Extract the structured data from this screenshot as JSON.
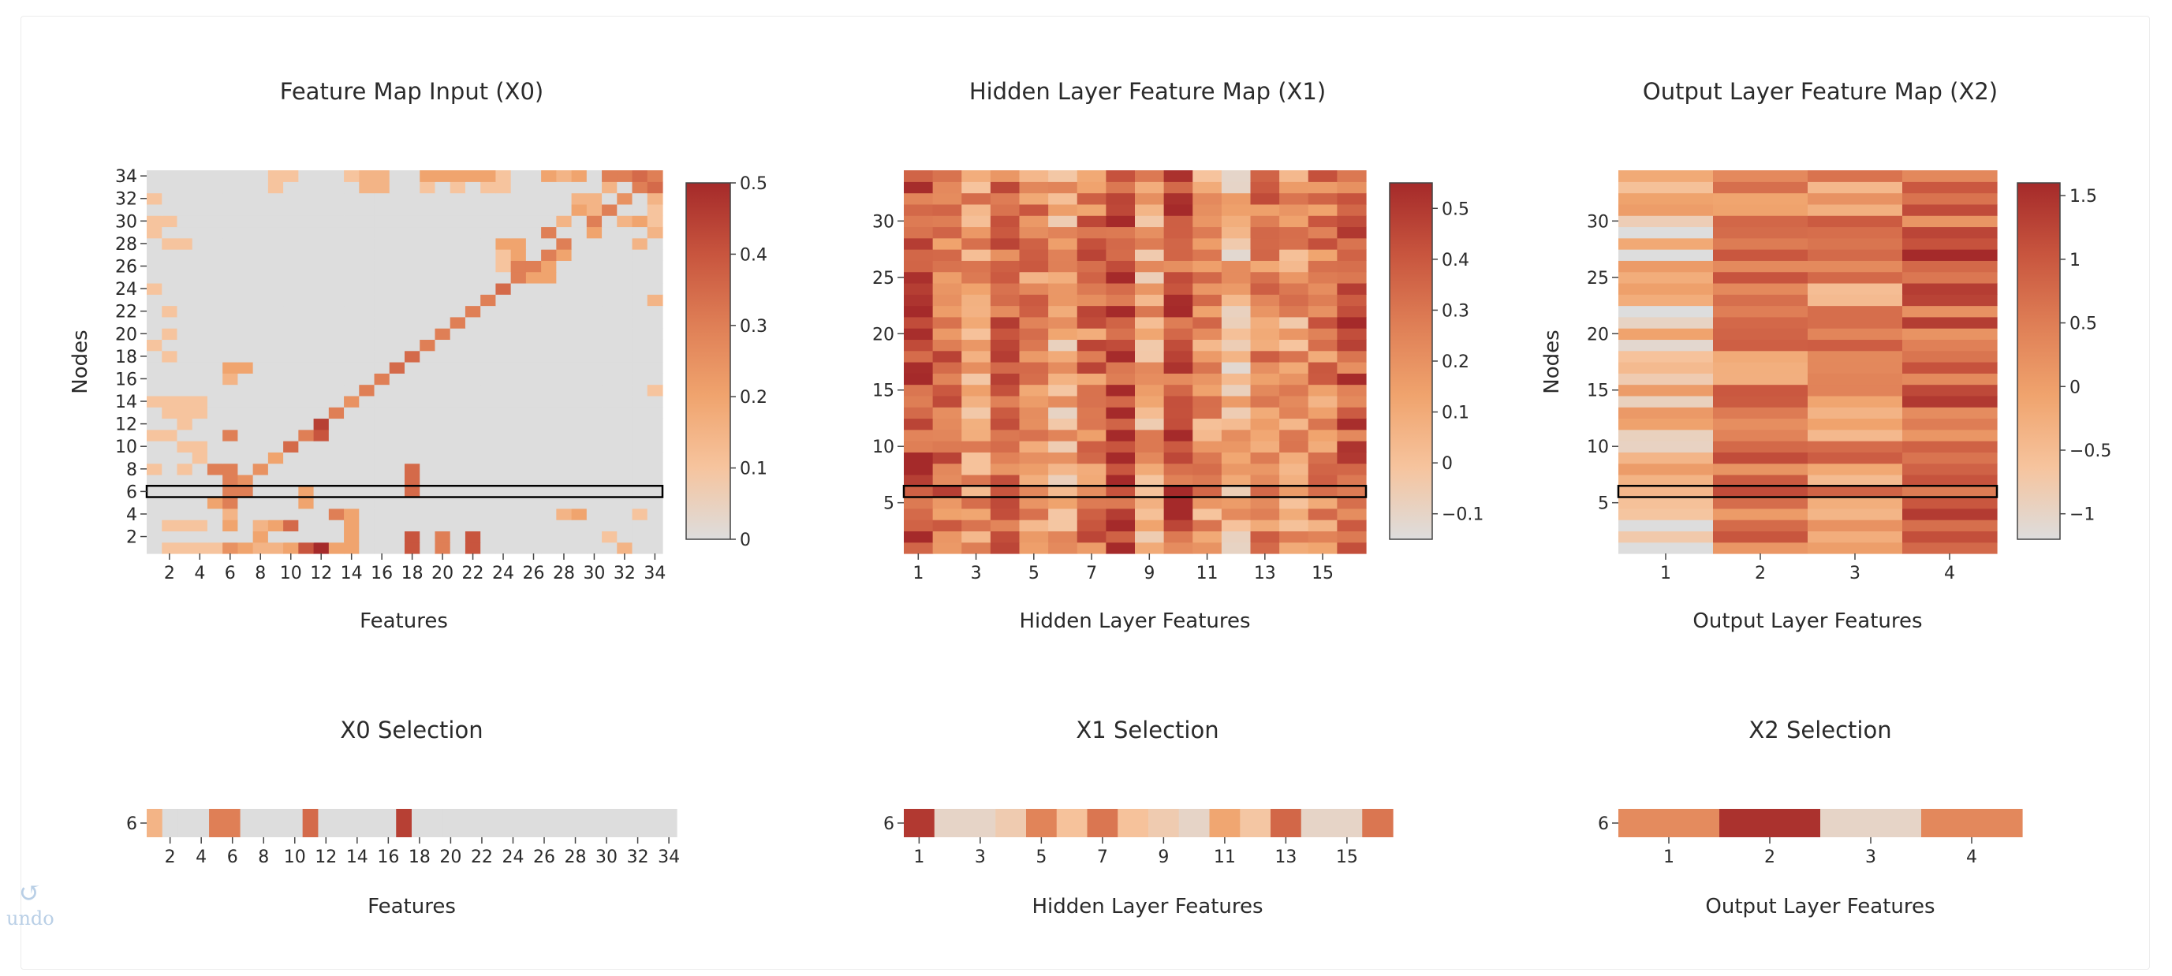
{
  "colors": {
    "scale": [
      "#dddddd",
      "#f6c49e",
      "#f0a46e",
      "#df7f56",
      "#c8553e",
      "#a52a2a"
    ],
    "selection_outline": "#000000",
    "background_cell": "#dddddd"
  },
  "undo": {
    "label": "undo",
    "icon": "undo-icon"
  },
  "chart_data": [
    {
      "id": "x0",
      "type": "heatmap",
      "title": "Feature Map Input (X0)",
      "xlabel": "Features",
      "ylabel": "Nodes",
      "xrange": [
        1,
        34
      ],
      "yrange": [
        1,
        34
      ],
      "xticks": [
        2,
        4,
        6,
        8,
        10,
        12,
        14,
        16,
        18,
        20,
        22,
        24,
        26,
        28,
        30,
        32,
        34
      ],
      "yticks": [
        2,
        4,
        6,
        8,
        10,
        12,
        14,
        16,
        18,
        20,
        22,
        24,
        26,
        28,
        30,
        32,
        34
      ],
      "colorbar": {
        "min": 0,
        "max": 0.5,
        "ticks": [
          "0",
          "0.1",
          "0.2",
          "0.3",
          "0.4",
          "0.5"
        ]
      },
      "selected_row": 6,
      "cells": [
        [
          1,
          6,
          0.25
        ],
        [
          1,
          7,
          0.2
        ],
        [
          1,
          8,
          0.15
        ],
        [
          1,
          9,
          0.15
        ],
        [
          1,
          10,
          0.2
        ],
        [
          1,
          11,
          0.4
        ],
        [
          1,
          12,
          0.5
        ],
        [
          1,
          13,
          0.2
        ],
        [
          1,
          14,
          0.2
        ],
        [
          1,
          18,
          0.4
        ],
        [
          1,
          20,
          0.3
        ],
        [
          1,
          22,
          0.4
        ],
        [
          1,
          32,
          0.15
        ],
        [
          1,
          2,
          0.1
        ],
        [
          1,
          3,
          0.1
        ],
        [
          1,
          4,
          0.1
        ],
        [
          1,
          5,
          0.1
        ],
        [
          2,
          8,
          0.2
        ],
        [
          2,
          14,
          0.2
        ],
        [
          2,
          18,
          0.4
        ],
        [
          2,
          20,
          0.3
        ],
        [
          2,
          22,
          0.4
        ],
        [
          2,
          31,
          0.1
        ],
        [
          3,
          10,
          0.35
        ],
        [
          3,
          9,
          0.2
        ],
        [
          3,
          14,
          0.2
        ],
        [
          3,
          8,
          0.15
        ],
        [
          3,
          6,
          0.2
        ],
        [
          3,
          2,
          0.1
        ],
        [
          3,
          3,
          0.1
        ],
        [
          3,
          4,
          0.1
        ],
        [
          4,
          13,
          0.3
        ],
        [
          4,
          6,
          0.15
        ],
        [
          4,
          14,
          0.2
        ],
        [
          4,
          28,
          0.15
        ],
        [
          4,
          29,
          0.2
        ],
        [
          4,
          33,
          0.1
        ],
        [
          5,
          6,
          0.3
        ],
        [
          5,
          11,
          0.2
        ],
        [
          5,
          5,
          0.2
        ],
        [
          6,
          6,
          0.3
        ],
        [
          6,
          7,
          0.3
        ],
        [
          6,
          11,
          0.2
        ],
        [
          6,
          18,
          0.35
        ],
        [
          7,
          6,
          0.3
        ],
        [
          7,
          7,
          0.25
        ],
        [
          7,
          18,
          0.35
        ],
        [
          8,
          6,
          0.3
        ],
        [
          8,
          5,
          0.3
        ],
        [
          8,
          8,
          0.25
        ],
        [
          8,
          18,
          0.35
        ],
        [
          8,
          3,
          0.1
        ],
        [
          8,
          1,
          0.1
        ],
        [
          9,
          9,
          0.2
        ],
        [
          9,
          4,
          0.1
        ],
        [
          10,
          10,
          0.35
        ],
        [
          10,
          3,
          0.1
        ],
        [
          10,
          4,
          0.1
        ],
        [
          11,
          6,
          0.3
        ],
        [
          11,
          11,
          0.3
        ],
        [
          11,
          12,
          0.4
        ],
        [
          11,
          2,
          0.1
        ],
        [
          11,
          1,
          0.1
        ],
        [
          12,
          12,
          0.45
        ],
        [
          12,
          3,
          0.1
        ],
        [
          13,
          13,
          0.3
        ],
        [
          13,
          4,
          0.1
        ],
        [
          13,
          3,
          0.1
        ],
        [
          13,
          2,
          0.1
        ],
        [
          14,
          14,
          0.25
        ],
        [
          14,
          4,
          0.1
        ],
        [
          14,
          3,
          0.1
        ],
        [
          14,
          2,
          0.1
        ],
        [
          14,
          1,
          0.1
        ],
        [
          15,
          15,
          0.3
        ],
        [
          15,
          34,
          0.1
        ],
        [
          16,
          16,
          0.3
        ],
        [
          16,
          6,
          0.15
        ],
        [
          17,
          17,
          0.35
        ],
        [
          17,
          6,
          0.2
        ],
        [
          17,
          7,
          0.2
        ],
        [
          18,
          18,
          0.35
        ],
        [
          18,
          2,
          0.1
        ],
        [
          19,
          19,
          0.3
        ],
        [
          19,
          1,
          0.1
        ],
        [
          20,
          20,
          0.3
        ],
        [
          20,
          2,
          0.1
        ],
        [
          21,
          21,
          0.3
        ],
        [
          22,
          22,
          0.3
        ],
        [
          22,
          2,
          0.1
        ],
        [
          23,
          23,
          0.3
        ],
        [
          23,
          34,
          0.15
        ],
        [
          24,
          24,
          0.35
        ],
        [
          24,
          1,
          0.1
        ],
        [
          25,
          25,
          0.3
        ],
        [
          25,
          27,
          0.2
        ],
        [
          25,
          26,
          0.2
        ],
        [
          26,
          26,
          0.3
        ],
        [
          26,
          25,
          0.3
        ],
        [
          26,
          27,
          0.2
        ],
        [
          26,
          24,
          0.1
        ],
        [
          27,
          27,
          0.3
        ],
        [
          27,
          28,
          0.2
        ],
        [
          27,
          25,
          0.2
        ],
        [
          27,
          24,
          0.1
        ],
        [
          28,
          28,
          0.3
        ],
        [
          28,
          25,
          0.2
        ],
        [
          28,
          24,
          0.2
        ],
        [
          28,
          33,
          0.15
        ],
        [
          28,
          2,
          0.1
        ],
        [
          28,
          3,
          0.1
        ],
        [
          29,
          27,
          0.3
        ],
        [
          29,
          30,
          0.2
        ],
        [
          29,
          34,
          0.15
        ],
        [
          29,
          1,
          0.1
        ],
        [
          30,
          30,
          0.3
        ],
        [
          30,
          28,
          0.15
        ],
        [
          30,
          32,
          0.15
        ],
        [
          30,
          33,
          0.2
        ],
        [
          30,
          34,
          0.1
        ],
        [
          30,
          1,
          0.1
        ],
        [
          30,
          2,
          0.1
        ],
        [
          31,
          31,
          0.3
        ],
        [
          31,
          29,
          0.2
        ],
        [
          31,
          30,
          0.15
        ],
        [
          31,
          34,
          0.1
        ],
        [
          32,
          32,
          0.25
        ],
        [
          32,
          30,
          0.15
        ],
        [
          32,
          29,
          0.15
        ],
        [
          32,
          34,
          0.15
        ],
        [
          32,
          1,
          0.1
        ],
        [
          33,
          33,
          0.3
        ],
        [
          33,
          34,
          0.35
        ],
        [
          33,
          31,
          0.15
        ],
        [
          33,
          24,
          0.1
        ],
        [
          33,
          16,
          0.15
        ],
        [
          33,
          15,
          0.15
        ],
        [
          33,
          21,
          0.1
        ],
        [
          33,
          23,
          0.1
        ],
        [
          33,
          19,
          0.1
        ],
        [
          33,
          9,
          0.1
        ],
        [
          34,
          34,
          0.3
        ],
        [
          34,
          33,
          0.35
        ],
        [
          34,
          32,
          0.3
        ],
        [
          34,
          31,
          0.3
        ],
        [
          34,
          29,
          0.2
        ],
        [
          34,
          28,
          0.15
        ],
        [
          34,
          27,
          0.2
        ],
        [
          34,
          24,
          0.1
        ],
        [
          34,
          23,
          0.2
        ],
        [
          34,
          22,
          0.2
        ],
        [
          34,
          21,
          0.2
        ],
        [
          34,
          20,
          0.2
        ],
        [
          34,
          19,
          0.2
        ],
        [
          34,
          16,
          0.15
        ],
        [
          34,
          15,
          0.15
        ],
        [
          34,
          14,
          0.1
        ],
        [
          34,
          10,
          0.1
        ],
        [
          34,
          9,
          0.1
        ]
      ]
    },
    {
      "id": "x1",
      "type": "heatmap",
      "title": "Hidden Layer Feature Map (X1)",
      "xlabel": "Hidden Layer Features",
      "ylabel": "",
      "xrange": [
        1,
        16
      ],
      "yrange": [
        1,
        34
      ],
      "xticks": [
        1,
        3,
        5,
        7,
        9,
        11,
        13,
        15
      ],
      "yticks": [
        5,
        10,
        15,
        20,
        25,
        30
      ],
      "colorbar": {
        "min": -0.15,
        "max": 0.55,
        "ticks": [
          "−0.1",
          "0",
          "0.1",
          "0.2",
          "0.3",
          "0.4",
          "0.5"
        ],
        "tick_values": [
          -0.1,
          0,
          0.1,
          0.2,
          0.3,
          0.4,
          0.5
        ]
      },
      "selected_row": 6,
      "column_means": [
        0.42,
        0.32,
        0.15,
        0.36,
        0.22,
        0.1,
        0.28,
        0.45,
        0.12,
        0.4,
        0.18,
        0.06,
        0.26,
        0.14,
        0.24,
        0.38
      ]
    },
    {
      "id": "x2",
      "type": "heatmap",
      "title": "Output Layer Feature Map (X2)",
      "xlabel": "Output Layer Features",
      "ylabel": "Nodes",
      "xrange": [
        1,
        4
      ],
      "yrange": [
        1,
        34
      ],
      "xticks": [
        1,
        2,
        3,
        4
      ],
      "yticks": [
        5,
        10,
        15,
        20,
        25,
        30
      ],
      "colorbar": {
        "min": -1.2,
        "max": 1.6,
        "ticks": [
          "−1",
          "−0.5",
          "0",
          "0.5",
          "1",
          "1.5"
        ],
        "tick_values": [
          -1,
          -0.5,
          0,
          0.5,
          1,
          1.5
        ]
      },
      "selected_row": 6,
      "column_means": [
        -0.6,
        0.4,
        0.25,
        0.9
      ]
    },
    {
      "id": "x0sel",
      "type": "heatmap",
      "title": "X0 Selection",
      "xlabel": "Features",
      "row_label": "6",
      "xticks": [
        2,
        4,
        6,
        8,
        10,
        12,
        14,
        16,
        18,
        20,
        22,
        24,
        26,
        28,
        30,
        32,
        34
      ],
      "values": [
        0.15,
        0,
        0,
        0,
        0.3,
        0.3,
        0,
        0,
        0,
        0,
        0.35,
        0,
        0,
        0,
        0,
        0,
        0.45,
        0,
        0,
        0,
        0,
        0,
        0,
        0,
        0,
        0,
        0,
        0,
        0,
        0,
        0,
        0,
        0,
        0
      ],
      "vmin": 0,
      "vmax": 0.5
    },
    {
      "id": "x1sel",
      "type": "heatmap",
      "title": "X1 Selection",
      "xlabel": "Hidden Layer Features",
      "row_label": "6",
      "xticks": [
        1,
        3,
        5,
        7,
        9,
        11,
        13,
        15
      ],
      "values": [
        0.5,
        -0.1,
        -0.1,
        -0.05,
        0.25,
        0,
        0.3,
        0,
        -0.05,
        -0.1,
        0.12,
        -0.02,
        0.35,
        -0.1,
        -0.1,
        0.3
      ],
      "vmin": -0.15,
      "vmax": 0.55
    },
    {
      "id": "x2sel",
      "type": "heatmap",
      "title": "X2 Selection",
      "xlabel": "Output Layer Features",
      "row_label": "6",
      "xticks": [
        1,
        2,
        3,
        4
      ],
      "values": [
        0.3,
        1.5,
        -1,
        0.35
      ],
      "vmin": -1.2,
      "vmax": 1.6
    }
  ]
}
